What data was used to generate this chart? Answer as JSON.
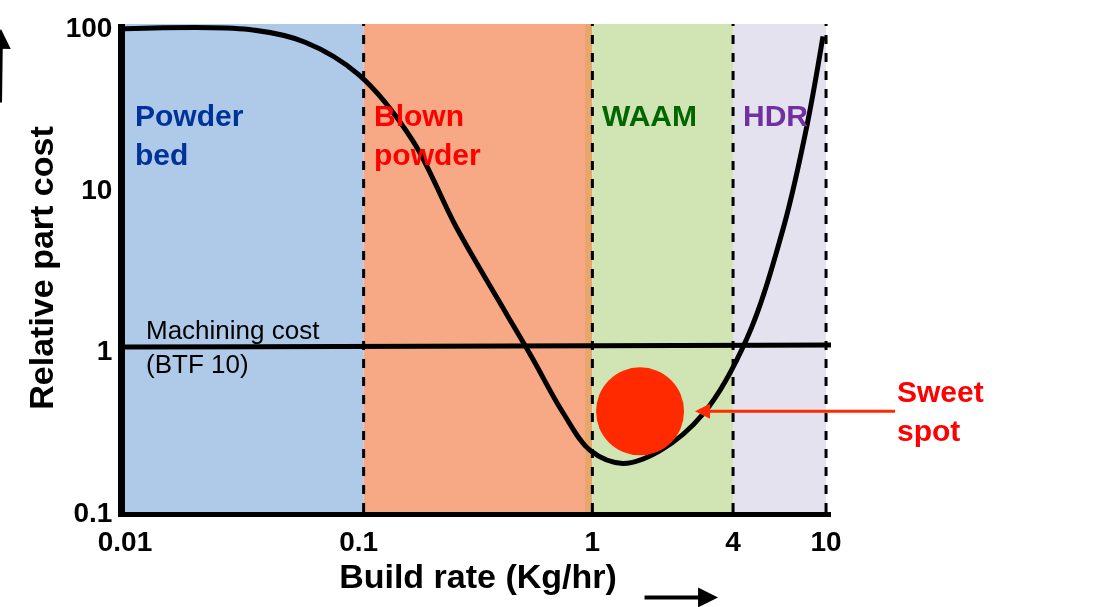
{
  "chart_data": {
    "type": "line",
    "xlabel": "Build rate (Kg/hr)",
    "ylabel": "Relative part cost",
    "log": "xy",
    "grid": false,
    "line_style": "solid",
    "xlim": [
      0.01,
      10.5
    ],
    "xticks": [
      0.01,
      0.1,
      1,
      4,
      10
    ],
    "ylim": [
      0.1,
      105
    ],
    "yticks": [
      0.1,
      1,
      10,
      100
    ],
    "x": [
      0.01,
      0.034,
      0.059,
      0.1,
      0.17,
      0.26,
      0.4,
      0.55,
      0.75,
      0.98,
      1.35,
      1.95,
      3.0,
      4.6,
      6.6,
      8.3,
      9.7
    ],
    "series": [
      {
        "color": "#000000",
        "values": [
          98,
          97,
          81,
          51,
          20,
          5.9,
          2.0,
          0.91,
          0.41,
          0.24,
          0.2,
          0.24,
          0.41,
          1.2,
          5.9,
          25,
          88
        ]
      },
      {
        "color": "#000000",
        "x": [
          0.01,
          10.5
        ],
        "values": [
          1.05,
          1.08
        ]
      },
      {
        "type": "scatter",
        "color": "#ff2a00",
        "x": [
          1.6
        ],
        "values": [
          0.42
        ]
      }
    ],
    "bands": [
      {
        "axis": "x",
        "from": 0.01,
        "to": 0.105,
        "label": "Powder bed",
        "color": "#aecae8"
      },
      {
        "axis": "x",
        "from": 0.105,
        "to": 0.93,
        "label": "Blown powder",
        "color": "#f7a986"
      },
      {
        "axis": "x",
        "from": 0.93,
        "to": 1.0,
        "color": "#e8a76a"
      },
      {
        "axis": "x",
        "from": 1.0,
        "to": 4,
        "label": "WAAM",
        "color": "#d1e4b4"
      },
      {
        "axis": "x",
        "from": 4,
        "to": 10,
        "label": "HDR",
        "color": "#e4e2ee"
      }
    ],
    "ref_lines": [
      {
        "axis": "x",
        "value": 0.105,
        "color": "#000000",
        "line_style": "dashed"
      },
      {
        "axis": "x",
        "value": 1,
        "color": "#000000",
        "line_style": "dashed"
      },
      {
        "axis": "x",
        "value": 4,
        "color": "#000000",
        "line_style": "dashed"
      },
      {
        "axis": "x",
        "value": 10,
        "color": "#000000",
        "line_style": "dashed"
      }
    ],
    "annotations": [
      {
        "text": "Machining cost\n(BTF 10)",
        "x": 0.012,
        "y": 1.05
      },
      {
        "text": "Sweet\nspot",
        "x": 2.75,
        "y": 0.42
      }
    ]
  }
}
